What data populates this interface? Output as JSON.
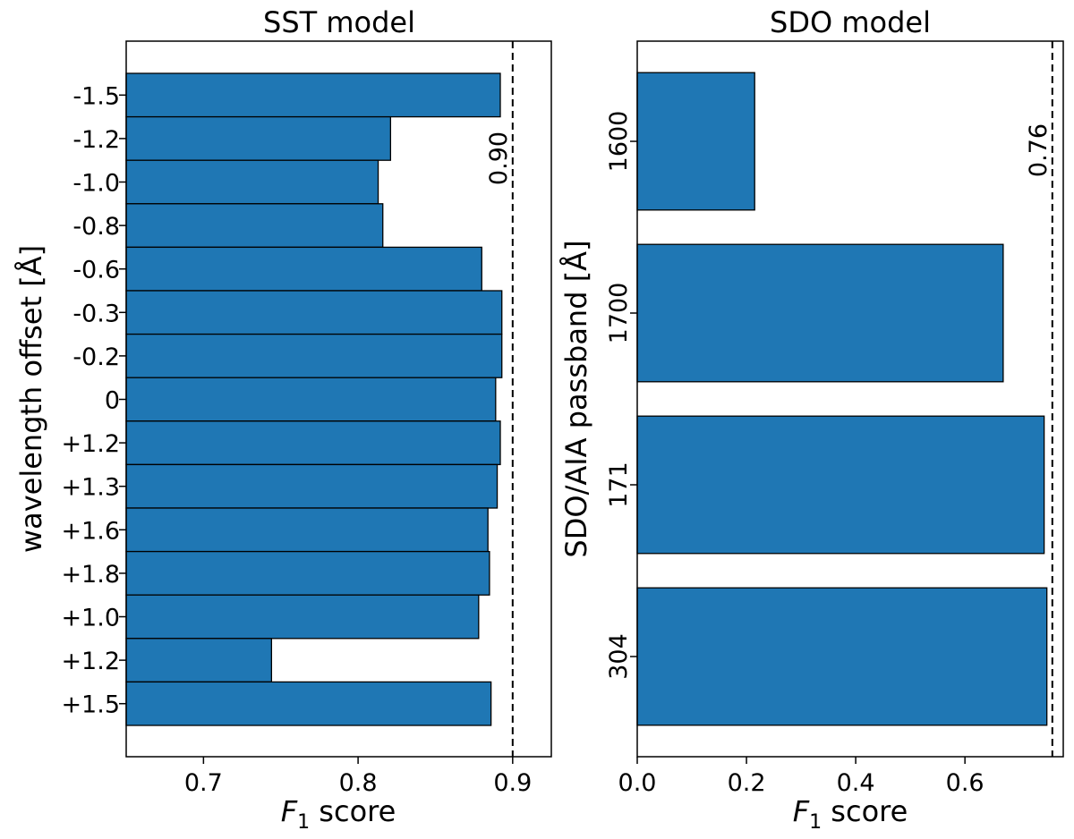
{
  "chart_data": [
    {
      "type": "bar",
      "orientation": "horizontal",
      "title": "SST model",
      "xlabel": "F",
      "xlabel_sub": "1",
      "xlabel_suffix": " score",
      "ylabel": "wavelength offset [Å]",
      "xlim": [
        0.65,
        0.925
      ],
      "xticks": [
        0.7,
        0.8,
        0.9
      ],
      "xtick_labels": [
        "0.7",
        "0.8",
        "0.9"
      ],
      "categories": [
        "-1.5",
        "-1.2",
        "-1.0",
        "-0.8",
        "-0.6",
        "-0.3",
        "-0.2",
        "0",
        "+1.2",
        "+1.3",
        "+1.6",
        "+1.8",
        "+1.0",
        "+1.2",
        "+1.5"
      ],
      "values": [
        0.892,
        0.821,
        0.813,
        0.816,
        0.88,
        0.893,
        0.893,
        0.889,
        0.892,
        0.89,
        0.884,
        0.885,
        0.878,
        0.744,
        0.886
      ],
      "reference_line": {
        "value": 0.9,
        "label": "0.90"
      }
    },
    {
      "type": "bar",
      "orientation": "horizontal",
      "title": "SDO model",
      "xlabel": "F",
      "xlabel_sub": "1",
      "xlabel_suffix": " score",
      "ylabel": "SDO/AIA passband [Å]",
      "xlim": [
        0.0,
        0.78
      ],
      "xticks": [
        0.0,
        0.2,
        0.4,
        0.6
      ],
      "xtick_labels": [
        "0.0",
        "0.2",
        "0.4",
        "0.6"
      ],
      "categories": [
        "1600",
        "1700",
        "171",
        "304"
      ],
      "values": [
        0.215,
        0.67,
        0.745,
        0.75
      ],
      "reference_line": {
        "value": 0.76,
        "label": "0.76"
      }
    }
  ]
}
